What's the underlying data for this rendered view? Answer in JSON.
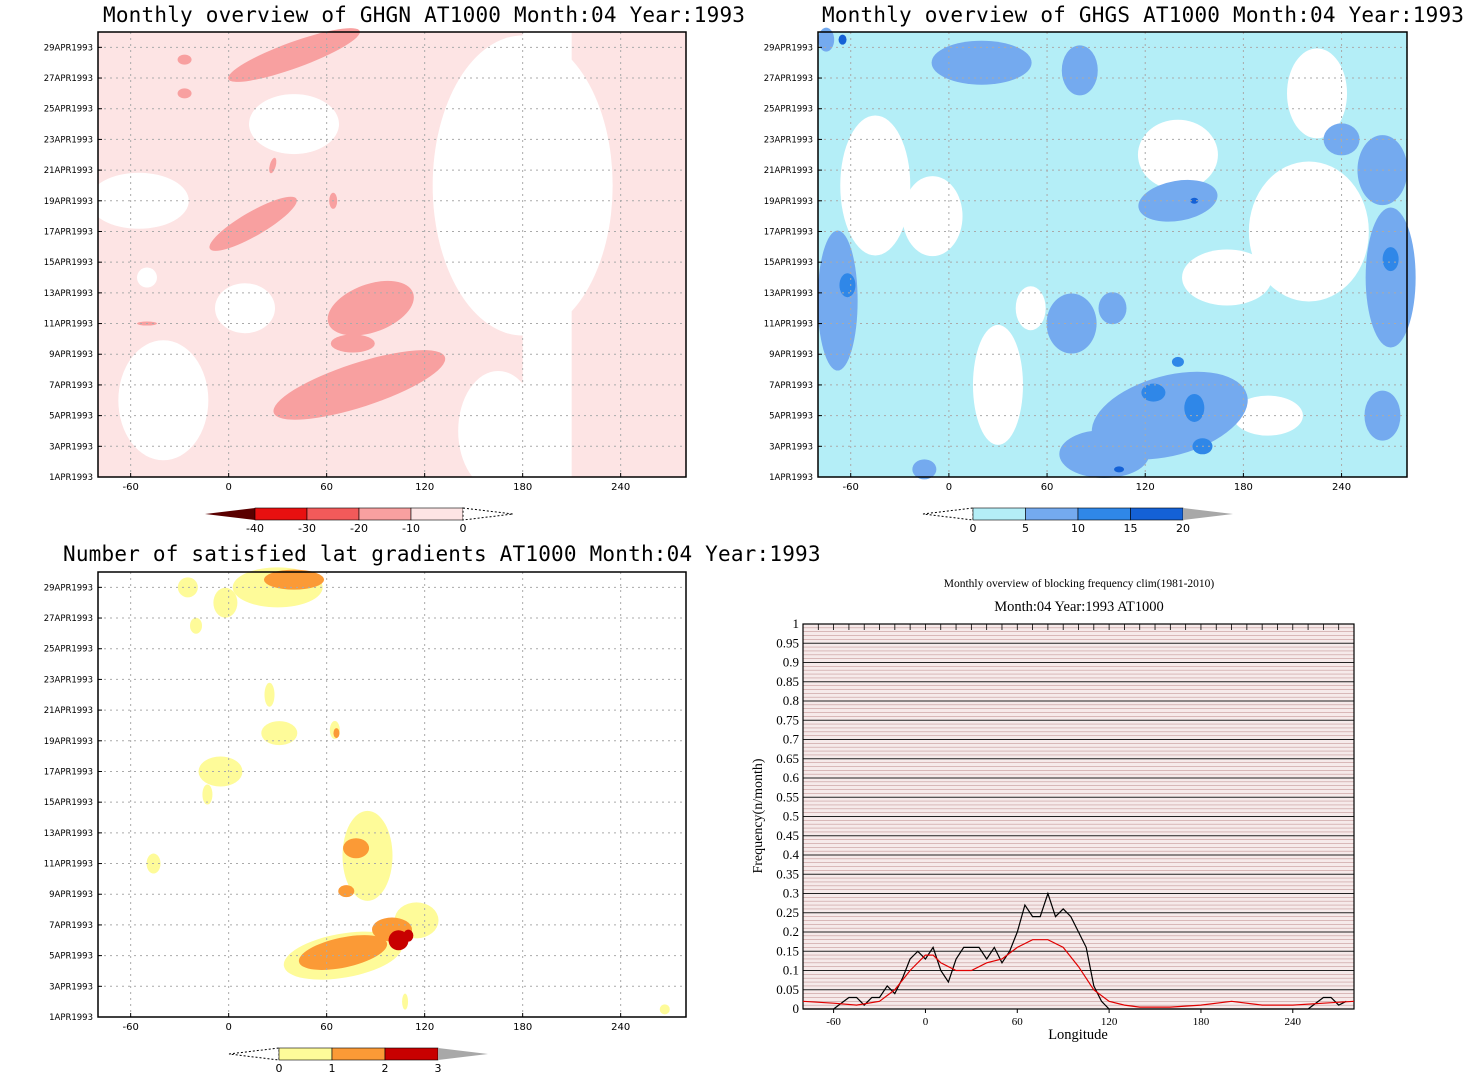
{
  "panels": {
    "ghgn": {
      "title": "Monthly overview of GHGN AT1000 Month:04 Year:1993",
      "colorbar": {
        "labels": [
          "-40",
          "-30",
          "-20",
          "-10",
          "0"
        ],
        "colors": [
          "#5a0000",
          "#e81010",
          "#f25a5a",
          "#f8a0a0",
          "#fde4e4",
          "#ffffff"
        ]
      }
    },
    "ghgs": {
      "title": "Monthly overview of GHGS AT1000 Month:04 Year:1993",
      "colorbar": {
        "labels": [
          "0",
          "5",
          "10",
          "15",
          "20"
        ],
        "colors": [
          "#ffffff",
          "#b4eef7",
          "#74aaef",
          "#2f87e8",
          "#1461d6",
          "#a8a8a8"
        ]
      }
    },
    "gradients": {
      "title": "Number of satisfied lat gradients AT1000 Month:04 Year:1993",
      "colorbar": {
        "labels": [
          "0",
          "1",
          "2",
          "3"
        ],
        "colors": [
          "#ffffff",
          "#fefb99",
          "#fb9a36",
          "#c80000",
          "#a8a8a8"
        ]
      }
    },
    "blocking": {
      "title": "Monthly overview of blocking frequency clim(1981-2010)",
      "subtitle": "Month:04 Year:1993  AT1000"
    }
  },
  "date_labels": [
    "1APR1993",
    "3APR1993",
    "5APR1993",
    "7APR1993",
    "9APR1993",
    "11APR1993",
    "13APR1993",
    "15APR1993",
    "17APR1993",
    "19APR1993",
    "21APR1993",
    "23APR1993",
    "25APR1993",
    "27APR1993",
    "29APR1993"
  ],
  "lon_labels": [
    "-60",
    "0",
    "60",
    "120",
    "180",
    "240"
  ],
  "chart_data": [
    {
      "type": "heatmap",
      "title": "Monthly overview of GHGN AT1000 Month:04 Year:1993",
      "x_range": [
        -80,
        280
      ],
      "y_range": [
        "1APR1993",
        "30APR1993"
      ],
      "xticks": [
        -60,
        0,
        60,
        120,
        180,
        240
      ],
      "legend_levels": [
        -40,
        -30,
        -20,
        -10,
        0
      ],
      "regions": [
        {
          "level": "-10 to -20",
          "x": [
            40,
            160
          ],
          "day": [
            2,
            15
          ]
        },
        {
          "level": "-10 to -20",
          "x": [
            -20,
            50
          ],
          "day": [
            17,
            20
          ]
        },
        {
          "level": "-10 to -20",
          "x": [
            -10,
            100
          ],
          "day": [
            28,
            30
          ]
        }
      ]
    },
    {
      "type": "heatmap",
      "title": "Monthly overview of GHGS AT1000 Month:04 Year:1993",
      "x_range": [
        -80,
        280
      ],
      "y_range": [
        "1APR1993",
        "30APR1993"
      ],
      "xticks": [
        -60,
        0,
        60,
        120,
        180,
        240
      ],
      "legend_levels": [
        0,
        5,
        10,
        15,
        20
      ],
      "regions": [
        {
          "level": "10 to 15",
          "x": [
            120,
            180
          ],
          "day": [
            1,
            9
          ]
        },
        {
          "level": "10 to 15",
          "x": [
            -80,
            -40
          ],
          "day": [
            9,
            16
          ]
        },
        {
          "level": "10 to 15",
          "x": [
            260,
            280
          ],
          "day": [
            12,
            17
          ]
        }
      ]
    },
    {
      "type": "heatmap",
      "title": "Number of satisfied lat gradients AT1000 Month:04 Year:1993",
      "x_range": [
        -80,
        280
      ],
      "y_range": [
        "1APR1993",
        "30APR1993"
      ],
      "xticks": [
        -60,
        0,
        60,
        120,
        180,
        240
      ],
      "legend_levels": [
        0,
        1,
        2,
        3
      ],
      "regions": [
        {
          "level": "2 to 3",
          "x": [
            100,
            115
          ],
          "day": [
            5,
            7
          ]
        },
        {
          "level": "1 to 2",
          "x": [
            45,
            120
          ],
          "day": [
            4,
            7
          ]
        },
        {
          "level": "1 to 2",
          "x": [
            65,
            95
          ],
          "day": [
            10,
            12
          ]
        },
        {
          "level": "1 to 2",
          "x": [
            10,
            40
          ],
          "day": [
            28,
            30
          ]
        }
      ]
    },
    {
      "type": "line",
      "title": "Monthly overview of blocking frequency clim(1981-2010)",
      "subtitle": "Month:04 Year:1993  AT1000",
      "xlabel": "Longitude",
      "ylabel": "Frequency(n/month)",
      "xlim": [
        -80,
        280
      ],
      "ylim": [
        0,
        1
      ],
      "xticks": [
        -60,
        0,
        60,
        120,
        180,
        240
      ],
      "yticks": [
        0,
        0.05,
        0.1,
        0.15,
        0.2,
        0.25,
        0.3,
        0.35,
        0.4,
        0.45,
        0.5,
        0.55,
        0.6,
        0.65,
        0.7,
        0.75,
        0.8,
        0.85,
        0.9,
        0.95,
        1
      ],
      "series": [
        {
          "color": "#000000",
          "x": [
            -80,
            -60,
            -50,
            -45,
            -40,
            -35,
            -30,
            -25,
            -20,
            -15,
            -10,
            -5,
            0,
            5,
            10,
            15,
            20,
            25,
            30,
            35,
            40,
            45,
            50,
            55,
            60,
            65,
            70,
            75,
            80,
            85,
            90,
            95,
            100,
            105,
            110,
            115,
            120,
            130,
            150,
            200,
            250,
            260,
            265,
            270,
            275
          ],
          "y": [
            0,
            0,
            0.03,
            0.03,
            0.01,
            0.03,
            0.03,
            0.06,
            0.04,
            0.08,
            0.13,
            0.15,
            0.13,
            0.16,
            0.1,
            0.07,
            0.13,
            0.16,
            0.16,
            0.16,
            0.13,
            0.16,
            0.12,
            0.15,
            0.2,
            0.27,
            0.24,
            0.24,
            0.3,
            0.24,
            0.26,
            0.24,
            0.2,
            0.16,
            0.06,
            0.02,
            0,
            0,
            0,
            0,
            0,
            0.03,
            0.03,
            0.01,
            0.02
          ]
        },
        {
          "color": "#e00000",
          "x": [
            -80,
            -60,
            -45,
            -30,
            -20,
            -10,
            0,
            5,
            10,
            20,
            30,
            40,
            50,
            60,
            70,
            80,
            90,
            100,
            110,
            120,
            130,
            140,
            160,
            180,
            200,
            220,
            240,
            260,
            280
          ],
          "y": [
            0.02,
            0.015,
            0.01,
            0.02,
            0.05,
            0.1,
            0.14,
            0.14,
            0.12,
            0.1,
            0.1,
            0.12,
            0.13,
            0.16,
            0.18,
            0.18,
            0.16,
            0.11,
            0.05,
            0.02,
            0.01,
            0.005,
            0.005,
            0.01,
            0.02,
            0.01,
            0.01,
            0.015,
            0.02
          ]
        }
      ]
    }
  ]
}
